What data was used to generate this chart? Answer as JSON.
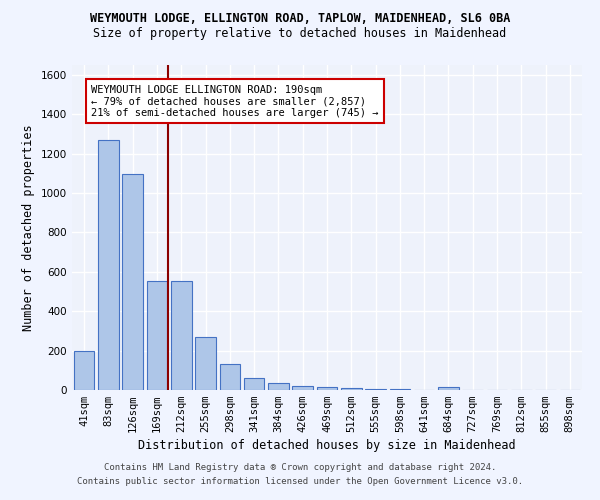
{
  "title1": "WEYMOUTH LODGE, ELLINGTON ROAD, TAPLOW, MAIDENHEAD, SL6 0BA",
  "title2": "Size of property relative to detached houses in Maidenhead",
  "xlabel": "Distribution of detached houses by size in Maidenhead",
  "ylabel": "Number of detached properties",
  "footnote1": "Contains HM Land Registry data ® Crown copyright and database right 2024.",
  "footnote2": "Contains public sector information licensed under the Open Government Licence v3.0.",
  "bar_labels": [
    "41sqm",
    "83sqm",
    "126sqm",
    "169sqm",
    "212sqm",
    "255sqm",
    "298sqm",
    "341sqm",
    "384sqm",
    "426sqm",
    "469sqm",
    "512sqm",
    "555sqm",
    "598sqm",
    "641sqm",
    "684sqm",
    "727sqm",
    "769sqm",
    "812sqm",
    "855sqm",
    "898sqm"
  ],
  "bar_values": [
    197,
    1268,
    1097,
    554,
    554,
    270,
    131,
    62,
    35,
    18,
    13,
    8,
    5,
    4,
    2,
    17,
    1,
    0,
    0,
    0,
    0
  ],
  "bar_color": "#aec6e8",
  "bar_edgecolor": "#4472c4",
  "vline_color": "#8b0000",
  "annotation_text": "WEYMOUTH LODGE ELLINGTON ROAD: 190sqm\n← 79% of detached houses are smaller (2,857)\n21% of semi-detached houses are larger (745) →",
  "annotation_box_color": "#ffffff",
  "annotation_box_edgecolor": "#cc0000",
  "ylim": [
    0,
    1650
  ],
  "yticks": [
    0,
    200,
    400,
    600,
    800,
    1000,
    1200,
    1400,
    1600
  ],
  "background_color": "#eef2fb",
  "grid_color": "#ffffff",
  "title_fontsize": 8.5,
  "subtitle_fontsize": 8.5,
  "axis_label_fontsize": 8.5,
  "tick_fontsize": 7.5,
  "annotation_fontsize": 7.5,
  "footnote_fontsize": 6.5,
  "vline_pos": 3.45
}
